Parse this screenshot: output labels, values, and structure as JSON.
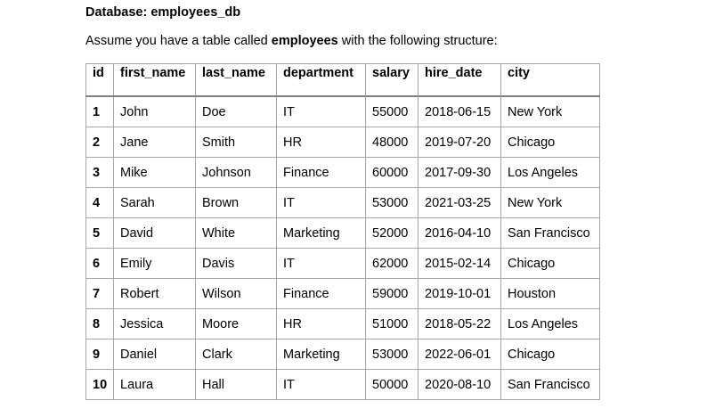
{
  "document": {
    "db_line": "Database: employees_db",
    "intro_prefix": "Assume you have a table called ",
    "intro_table_name": "employees",
    "intro_suffix": " with the following structure:"
  },
  "table": {
    "columns": [
      "id",
      "first_name",
      "last_name",
      "department",
      "salary",
      "hire_date",
      "city"
    ],
    "rows": [
      [
        "1",
        "John",
        "Doe",
        "IT",
        "55000",
        "2018-06-15",
        "New York"
      ],
      [
        "2",
        "Jane",
        "Smith",
        "HR",
        "48000",
        "2019-07-20",
        "Chicago"
      ],
      [
        "3",
        "Mike",
        "Johnson",
        "Finance",
        "60000",
        "2017-09-30",
        "Los Angeles"
      ],
      [
        "4",
        "Sarah",
        "Brown",
        "IT",
        "53000",
        "2021-03-25",
        "New York"
      ],
      [
        "5",
        "David",
        "White",
        "Marketing",
        "52000",
        "2016-04-10",
        "San Francisco"
      ],
      [
        "6",
        "Emily",
        "Davis",
        "IT",
        "62000",
        "2015-02-14",
        "Chicago"
      ],
      [
        "7",
        "Robert",
        "Wilson",
        "Finance",
        "59000",
        "2019-10-01",
        "Houston"
      ],
      [
        "8",
        "Jessica",
        "Moore",
        "HR",
        "51000",
        "2018-05-22",
        "Los Angeles"
      ],
      [
        "9",
        "Daniel",
        "Clark",
        "Marketing",
        "53000",
        "2022-06-01",
        "Chicago"
      ],
      [
        "10",
        "Laura",
        "Hall",
        "IT",
        "50000",
        "2020-08-10",
        "San Francisco"
      ]
    ]
  }
}
